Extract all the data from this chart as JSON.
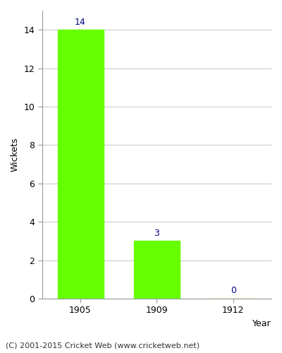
{
  "categories": [
    "1905",
    "1909",
    "1912"
  ],
  "values": [
    14,
    3,
    0
  ],
  "bar_color": "#66ff00",
  "bar_edgecolor": "#66ff00",
  "ylabel": "Wickets",
  "xlabel": "Year",
  "ylim": [
    0,
    15.0
  ],
  "yticks": [
    0,
    2,
    4,
    6,
    8,
    10,
    12,
    14
  ],
  "label_color": "#000080",
  "label_fontsize": 9,
  "axis_label_fontsize": 9,
  "tick_fontsize": 9,
  "footer": "(C) 2001-2015 Cricket Web (www.cricketweb.net)",
  "footer_fontsize": 8,
  "background_color": "#ffffff",
  "grid_color": "#cccccc"
}
